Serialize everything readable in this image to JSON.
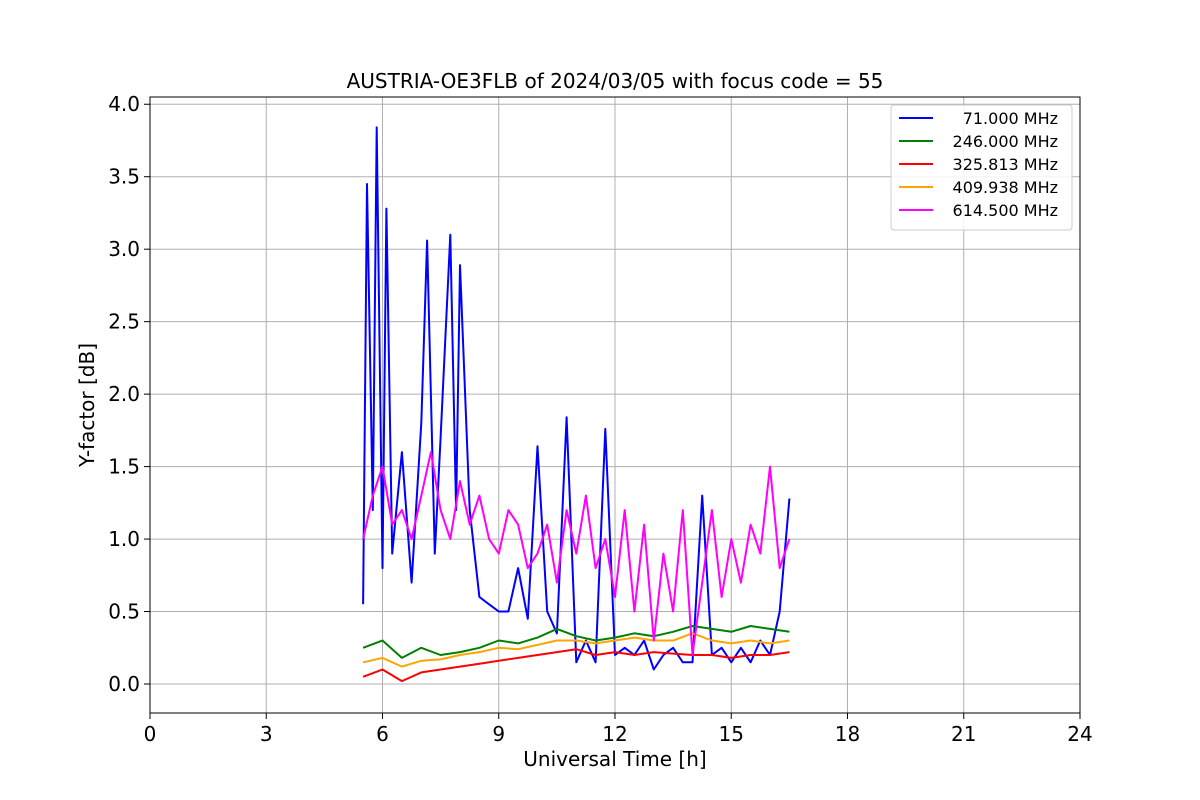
{
  "chart_data": {
    "type": "line",
    "title": "AUSTRIA-OE3FLB of 2024/03/05 with focus code = 55",
    "xlabel": "Universal Time [h]",
    "ylabel": "Y-factor [dB]",
    "xlim": [
      0,
      24
    ],
    "ylim": [
      -0.2,
      4.05
    ],
    "xticks": [
      0,
      3,
      6,
      9,
      12,
      15,
      18,
      21,
      24
    ],
    "xtick_labels": [
      "0",
      "3",
      "6",
      "9",
      "12",
      "15",
      "18",
      "21",
      "24"
    ],
    "yticks": [
      0.0,
      0.5,
      1.0,
      1.5,
      2.0,
      2.5,
      3.0,
      3.5,
      4.0
    ],
    "ytick_labels": [
      "0.0",
      "0.5",
      "1.0",
      "1.5",
      "2.0",
      "2.5",
      "3.0",
      "3.5",
      "4.0"
    ],
    "grid": true,
    "legend_position": "top-right",
    "series": [
      {
        "name": "71.000 MHz",
        "color": "#0000ff",
        "x": [
          5.5,
          5.6,
          5.75,
          5.85,
          6.0,
          6.1,
          6.25,
          6.5,
          6.75,
          7.0,
          7.15,
          7.35,
          7.5,
          7.75,
          7.9,
          8.0,
          8.25,
          8.5,
          8.75,
          9.0,
          9.25,
          9.5,
          9.75,
          10.0,
          10.25,
          10.5,
          10.75,
          11.0,
          11.25,
          11.5,
          11.75,
          12.0,
          12.25,
          12.5,
          12.75,
          13.0,
          13.25,
          13.5,
          13.75,
          14.0,
          14.25,
          14.5,
          14.75,
          15.0,
          15.25,
          15.5,
          15.75,
          16.0,
          16.25,
          16.5
        ],
        "y": [
          0.55,
          3.45,
          1.2,
          3.84,
          0.8,
          3.28,
          0.9,
          1.6,
          0.7,
          1.8,
          3.06,
          0.9,
          1.7,
          3.1,
          1.2,
          2.89,
          1.2,
          0.6,
          0.55,
          0.5,
          0.5,
          0.8,
          0.45,
          1.64,
          0.5,
          0.35,
          1.84,
          0.15,
          0.3,
          0.15,
          1.76,
          0.2,
          0.25,
          0.2,
          0.3,
          0.1,
          0.2,
          0.25,
          0.15,
          0.15,
          1.3,
          0.2,
          0.25,
          0.15,
          0.25,
          0.15,
          0.3,
          0.2,
          0.5,
          1.28
        ]
      },
      {
        "name": "246.000 MHz",
        "color": "#008000",
        "x": [
          5.5,
          6.0,
          6.5,
          7.0,
          7.5,
          8.0,
          8.5,
          9.0,
          9.5,
          10.0,
          10.5,
          11.0,
          11.5,
          12.0,
          12.5,
          13.0,
          13.5,
          14.0,
          14.5,
          15.0,
          15.5,
          16.0,
          16.5
        ],
        "y": [
          0.25,
          0.3,
          0.18,
          0.25,
          0.2,
          0.22,
          0.25,
          0.3,
          0.28,
          0.32,
          0.38,
          0.33,
          0.3,
          0.32,
          0.35,
          0.33,
          0.36,
          0.4,
          0.38,
          0.36,
          0.4,
          0.38,
          0.36
        ]
      },
      {
        "name": "325.813 MHz",
        "color": "#ff0000",
        "x": [
          5.5,
          6.0,
          6.5,
          7.0,
          7.5,
          8.0,
          8.5,
          9.0,
          9.5,
          10.0,
          10.5,
          11.0,
          11.5,
          12.0,
          12.5,
          13.0,
          13.5,
          14.0,
          14.5,
          15.0,
          15.5,
          16.0,
          16.5
        ],
        "y": [
          0.05,
          0.1,
          0.02,
          0.08,
          0.1,
          0.12,
          0.14,
          0.16,
          0.18,
          0.2,
          0.22,
          0.24,
          0.2,
          0.22,
          0.2,
          0.22,
          0.21,
          0.2,
          0.2,
          0.18,
          0.2,
          0.2,
          0.22
        ]
      },
      {
        "name": "409.938 MHz",
        "color": "#ffa500",
        "x": [
          5.5,
          6.0,
          6.5,
          7.0,
          7.5,
          8.0,
          8.5,
          9.0,
          9.5,
          10.0,
          10.5,
          11.0,
          11.5,
          12.0,
          12.5,
          13.0,
          13.5,
          14.0,
          14.5,
          15.0,
          15.5,
          16.0,
          16.5
        ],
        "y": [
          0.15,
          0.18,
          0.12,
          0.16,
          0.17,
          0.2,
          0.22,
          0.25,
          0.24,
          0.27,
          0.3,
          0.3,
          0.28,
          0.3,
          0.32,
          0.3,
          0.3,
          0.35,
          0.3,
          0.28,
          0.3,
          0.28,
          0.3
        ]
      },
      {
        "name": "614.500 MHz",
        "color": "#ff00ff",
        "x": [
          5.5,
          5.75,
          6.0,
          6.25,
          6.5,
          6.75,
          7.0,
          7.25,
          7.5,
          7.75,
          8.0,
          8.25,
          8.5,
          8.75,
          9.0,
          9.25,
          9.5,
          9.75,
          10.0,
          10.25,
          10.5,
          10.75,
          11.0,
          11.25,
          11.5,
          11.75,
          12.0,
          12.25,
          12.5,
          12.75,
          13.0,
          13.25,
          13.5,
          13.75,
          14.0,
          14.25,
          14.5,
          14.75,
          15.0,
          15.25,
          15.5,
          15.75,
          16.0,
          16.25,
          16.5
        ],
        "y": [
          1.0,
          1.3,
          1.5,
          1.1,
          1.2,
          1.0,
          1.3,
          1.6,
          1.2,
          1.0,
          1.4,
          1.1,
          1.3,
          1.0,
          0.9,
          1.2,
          1.1,
          0.8,
          0.9,
          1.1,
          0.7,
          1.2,
          0.9,
          1.3,
          0.8,
          1.0,
          0.6,
          1.2,
          0.5,
          1.1,
          0.3,
          0.9,
          0.5,
          1.2,
          0.2,
          0.7,
          1.2,
          0.6,
          1.0,
          0.7,
          1.1,
          0.9,
          1.5,
          0.8,
          1.0
        ]
      }
    ]
  }
}
